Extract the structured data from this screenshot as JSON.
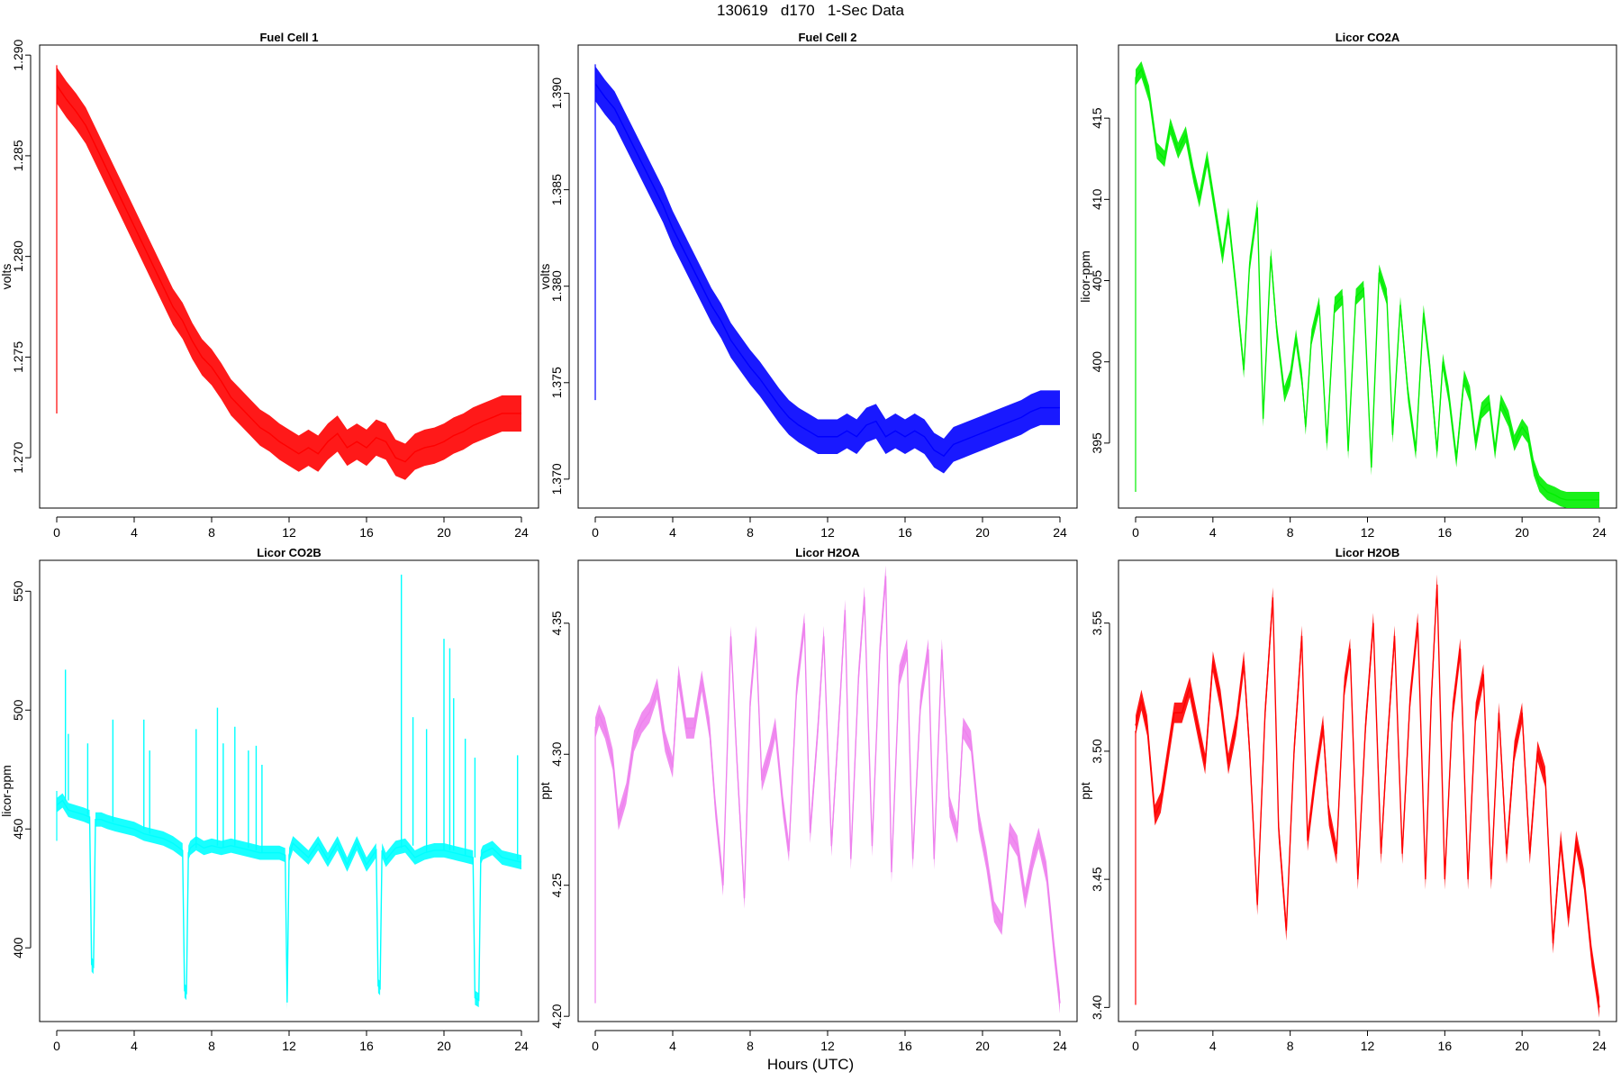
{
  "title": "130619   d170   1-Sec Data",
  "xlabel": "Hours (UTC)",
  "chart_data": [
    {
      "type": "line",
      "title": "Fuel Cell 1",
      "ylabel": "volts",
      "color": "#ff0000",
      "xlim": [
        0,
        24
      ],
      "ylim": [
        1.2675,
        1.2905
      ],
      "xticks": [
        0,
        4,
        8,
        12,
        16,
        20,
        24
      ],
      "yticks": [
        "1.270",
        "1.275",
        "1.280",
        "1.285",
        "1.290"
      ],
      "x": [
        0,
        0.5,
        1,
        1.5,
        2,
        2.5,
        3,
        3.5,
        4,
        4.5,
        5,
        5.5,
        6,
        6.5,
        7,
        7.5,
        8,
        8.5,
        9,
        9.5,
        10,
        10.5,
        11,
        11.5,
        12,
        12.5,
        13,
        13.5,
        14,
        14.5,
        15,
        15.5,
        16,
        16.5,
        17,
        17.5,
        18,
        18.5,
        19,
        19.5,
        20,
        20.5,
        21,
        21.5,
        22,
        22.5,
        23,
        23.5,
        24
      ],
      "y": [
        1.2885,
        1.2878,
        1.2872,
        1.2865,
        1.2855,
        1.2845,
        1.2835,
        1.2825,
        1.2815,
        1.2805,
        1.2795,
        1.2785,
        1.2775,
        1.2768,
        1.2758,
        1.275,
        1.2745,
        1.2738,
        1.273,
        1.2725,
        1.272,
        1.2715,
        1.2712,
        1.2708,
        1.2705,
        1.2702,
        1.2705,
        1.2702,
        1.2708,
        1.2712,
        1.2705,
        1.2708,
        1.2705,
        1.271,
        1.2708,
        1.27,
        1.2698,
        1.2703,
        1.2705,
        1.2706,
        1.2708,
        1.2711,
        1.2713,
        1.2716,
        1.2718,
        1.272,
        1.2722,
        1.2722,
        1.2722
      ],
      "band": 0.0009,
      "spike": {
        "x": 0,
        "from": 1.2722,
        "to": 1.2895
      }
    },
    {
      "type": "line",
      "title": "Fuel Cell 2",
      "ylabel": "volts",
      "color": "#0000ff",
      "xlim": [
        0,
        24
      ],
      "ylim": [
        1.3685,
        1.3925
      ],
      "xticks": [
        0,
        4,
        8,
        12,
        16,
        20,
        24
      ],
      "yticks": [
        "1.370",
        "1.375",
        "1.380",
        "1.385",
        "1.390"
      ],
      "x": [
        0,
        0.5,
        1,
        1.5,
        2,
        2.5,
        3,
        3.5,
        4,
        4.5,
        5,
        5.5,
        6,
        6.5,
        7,
        7.5,
        8,
        8.5,
        9,
        9.5,
        10,
        10.5,
        11,
        11.5,
        12,
        12.5,
        13,
        13.5,
        14,
        14.5,
        15,
        15.5,
        16,
        16.5,
        17,
        17.5,
        18,
        18.5,
        19,
        19.5,
        20,
        20.5,
        21,
        21.5,
        22,
        22.5,
        23,
        23.5,
        24
      ],
      "y": [
        1.3905,
        1.3898,
        1.3892,
        1.3882,
        1.3872,
        1.3862,
        1.3852,
        1.3842,
        1.383,
        1.382,
        1.381,
        1.38,
        1.379,
        1.3782,
        1.3772,
        1.3765,
        1.3758,
        1.3752,
        1.3745,
        1.3738,
        1.3732,
        1.3728,
        1.3725,
        1.3722,
        1.3722,
        1.3722,
        1.3725,
        1.3722,
        1.3728,
        1.373,
        1.3722,
        1.3725,
        1.3722,
        1.3725,
        1.3722,
        1.3715,
        1.3712,
        1.3718,
        1.372,
        1.3722,
        1.3724,
        1.3726,
        1.3728,
        1.373,
        1.3732,
        1.3735,
        1.3737,
        1.3737,
        1.3737
      ],
      "band": 0.0009,
      "spike": {
        "x": 0,
        "from": 1.3741,
        "to": 1.3915
      }
    },
    {
      "type": "line",
      "title": "Licor CO2A",
      "ylabel": "licor-ppm",
      "color": "#00ee00",
      "xlim": [
        0,
        24
      ],
      "ylim": [
        391.0,
        419.5
      ],
      "xticks": [
        0,
        4,
        8,
        12,
        16,
        20,
        24
      ],
      "yticks": [
        "395",
        "400",
        "405",
        "410",
        "415"
      ],
      "x": [
        0,
        0.3,
        0.7,
        1.1,
        1.5,
        1.8,
        2.2,
        2.6,
        3.0,
        3.3,
        3.7,
        4.1,
        4.5,
        4.8,
        5.2,
        5.6,
        5.9,
        6.3,
        6.6,
        7.0,
        7.3,
        7.7,
        8.0,
        8.3,
        8.6,
        8.8,
        9.1,
        9.5,
        9.9,
        10.3,
        10.7,
        11.0,
        11.4,
        11.8,
        12.2,
        12.6,
        13.0,
        13.3,
        13.7,
        14.1,
        14.5,
        14.9,
        15.2,
        15.6,
        15.9,
        16.2,
        16.6,
        17.0,
        17.3,
        17.6,
        17.9,
        18.3,
        18.6,
        18.9,
        19.3,
        19.6,
        20.0,
        20.3,
        20.6,
        20.9,
        21.3,
        21.7,
        22.0,
        22.3,
        22.6,
        23.0,
        23.3,
        23.7,
        24.0
      ],
      "y": [
        417.5,
        418.0,
        416.5,
        413.0,
        412.5,
        414.5,
        413.0,
        414.0,
        411.5,
        410.0,
        412.5,
        409.5,
        406.5,
        409.0,
        404.5,
        399.5,
        406.0,
        409.5,
        396.5,
        406.5,
        402.0,
        398.0,
        399.0,
        401.5,
        399.0,
        396.0,
        401.5,
        403.5,
        395.0,
        403.5,
        404.0,
        394.5,
        404.0,
        404.5,
        393.5,
        405.5,
        404.0,
        395.5,
        403.5,
        398.0,
        394.5,
        403.0,
        400.0,
        394.5,
        400.0,
        398.0,
        394.0,
        399.0,
        398.0,
        395.0,
        397.0,
        397.5,
        394.5,
        397.5,
        396.5,
        395.0,
        396.0,
        395.5,
        393.5,
        392.5,
        392.0,
        391.8,
        391.6,
        391.5,
        391.5,
        391.5,
        391.5,
        391.5,
        391.5
      ],
      "band": 0.5,
      "spike": {
        "x": 0,
        "from": 392.0,
        "to": 417.5
      }
    },
    {
      "type": "line",
      "title": "Licor CO2B",
      "ylabel": "licor-ppm",
      "color": "#00ffff",
      "xlim": [
        0,
        24
      ],
      "ylim": [
        369.0,
        563.0
      ],
      "xticks": [
        0,
        4,
        8,
        12,
        16,
        20,
        24
      ],
      "yticks": [
        "400",
        "450",
        "500",
        "550"
      ],
      "x": [
        0,
        0.3,
        0.6,
        1.0,
        1.4,
        1.7,
        1.8,
        1.9,
        2.0,
        2.3,
        2.6,
        3.0,
        3.5,
        4.0,
        4.5,
        5.0,
        5.5,
        6.0,
        6.5,
        6.6,
        6.7,
        6.8,
        6.9,
        7.2,
        7.6,
        8.0,
        8.5,
        9.0,
        9.5,
        10.0,
        10.5,
        11.0,
        11.5,
        11.8,
        11.9,
        12.0,
        12.2,
        12.6,
        13.0,
        13.5,
        14.0,
        14.5,
        15.0,
        15.5,
        16.0,
        16.5,
        16.6,
        16.7,
        16.8,
        17.0,
        17.5,
        18.0,
        18.5,
        19.0,
        19.5,
        20.0,
        20.5,
        21.0,
        21.5,
        21.6,
        21.8,
        21.9,
        22.0,
        22.5,
        23.0,
        23.5,
        24.0
      ],
      "y": [
        460,
        462,
        458,
        457,
        456,
        455,
        393,
        392,
        454,
        454,
        453,
        452,
        451,
        450,
        448,
        447,
        446,
        444,
        441,
        382,
        381,
        440,
        442,
        444,
        442,
        443,
        442,
        443,
        442,
        441,
        440,
        440,
        440,
        439,
        377,
        439,
        444,
        441,
        438,
        444,
        437,
        444,
        435,
        444,
        435,
        441,
        384,
        383,
        441,
        437,
        442,
        443,
        438,
        440,
        441,
        441,
        440,
        439,
        438,
        379,
        378,
        438,
        440,
        442,
        438,
        437,
        436
      ],
      "band": 3,
      "spike": {
        "x": 0,
        "from": 445,
        "to": 466
      },
      "spikes": [
        {
          "x": 0.45,
          "to": 517
        },
        {
          "x": 0.6,
          "to": 490
        },
        {
          "x": 1.6,
          "to": 486
        },
        {
          "x": 2.9,
          "to": 496
        },
        {
          "x": 4.5,
          "to": 496
        },
        {
          "x": 4.8,
          "to": 483
        },
        {
          "x": 7.2,
          "to": 492
        },
        {
          "x": 8.3,
          "to": 501
        },
        {
          "x": 8.6,
          "to": 486
        },
        {
          "x": 9.2,
          "to": 493
        },
        {
          "x": 9.9,
          "to": 483
        },
        {
          "x": 10.3,
          "to": 485
        },
        {
          "x": 10.6,
          "to": 477
        },
        {
          "x": 17.8,
          "to": 557
        },
        {
          "x": 18.4,
          "to": 497
        },
        {
          "x": 19.1,
          "to": 492
        },
        {
          "x": 20.0,
          "to": 530
        },
        {
          "x": 20.3,
          "to": 526
        },
        {
          "x": 20.5,
          "to": 505
        },
        {
          "x": 21.1,
          "to": 488
        },
        {
          "x": 21.6,
          "to": 480
        },
        {
          "x": 23.8,
          "to": 481
        }
      ]
    },
    {
      "type": "line",
      "title": "Licor H2OA",
      "ylabel": "ppt",
      "color": "#ee82ee",
      "xlim": [
        0,
        24
      ],
      "ylim": [
        4.198,
        4.374
      ],
      "xticks": [
        0,
        4,
        8,
        12,
        16,
        20,
        24
      ],
      "yticks": [
        "4.20",
        "4.25",
        "4.30",
        "4.35"
      ],
      "x": [
        0,
        0.2,
        0.5,
        0.9,
        1.2,
        1.6,
        2.0,
        2.4,
        2.8,
        3.2,
        3.6,
        4.0,
        4.3,
        4.7,
        5.1,
        5.5,
        5.9,
        6.2,
        6.6,
        7.0,
        7.3,
        7.7,
        8.0,
        8.3,
        8.6,
        9.0,
        9.3,
        9.7,
        10.0,
        10.4,
        10.8,
        11.1,
        11.5,
        11.8,
        12.2,
        12.6,
        12.9,
        13.2,
        13.6,
        13.9,
        14.3,
        14.7,
        15.0,
        15.3,
        15.7,
        16.1,
        16.4,
        16.8,
        17.2,
        17.5,
        17.9,
        18.3,
        18.7,
        19.0,
        19.4,
        19.8,
        20.2,
        20.6,
        21.0,
        21.4,
        21.8,
        22.2,
        22.6,
        22.9,
        23.3,
        23.7,
        24.0
      ],
      "y": [
        4.31,
        4.315,
        4.31,
        4.298,
        4.275,
        4.285,
        4.305,
        4.312,
        4.316,
        4.325,
        4.305,
        4.295,
        4.33,
        4.31,
        4.31,
        4.328,
        4.31,
        4.28,
        4.25,
        4.345,
        4.3,
        4.245,
        4.32,
        4.345,
        4.29,
        4.3,
        4.31,
        4.28,
        4.263,
        4.325,
        4.35,
        4.27,
        4.31,
        4.345,
        4.265,
        4.315,
        4.355,
        4.26,
        4.33,
        4.36,
        4.265,
        4.34,
        4.368,
        4.255,
        4.33,
        4.34,
        4.26,
        4.32,
        4.34,
        4.26,
        4.34,
        4.28,
        4.27,
        4.31,
        4.305,
        4.275,
        4.26,
        4.24,
        4.235,
        4.27,
        4.265,
        4.245,
        4.26,
        4.268,
        4.255,
        4.225,
        4.205
      ],
      "band": 0.004,
      "spike": {
        "x": 0,
        "from": 4.205,
        "to": 4.31
      }
    },
    {
      "type": "line",
      "title": "Licor H2OB",
      "ylabel": "ppt",
      "color": "#ff0000",
      "xlim": [
        0,
        24
      ],
      "ylim": [
        3.3945,
        3.5745
      ],
      "xticks": [
        0,
        4,
        8,
        12,
        16,
        20,
        24
      ],
      "yticks": [
        "3.40",
        "3.45",
        "3.50",
        "3.55"
      ],
      "x": [
        0,
        0.3,
        0.6,
        1.0,
        1.3,
        1.7,
        2.0,
        2.4,
        2.8,
        3.2,
        3.6,
        4.0,
        4.4,
        4.8,
        5.2,
        5.6,
        5.9,
        6.3,
        6.7,
        7.1,
        7.4,
        7.8,
        8.2,
        8.6,
        8.9,
        9.3,
        9.7,
        10.0,
        10.4,
        10.8,
        11.1,
        11.5,
        11.9,
        12.3,
        12.7,
        13.0,
        13.4,
        13.8,
        14.2,
        14.6,
        15.0,
        15.3,
        15.6,
        16.0,
        16.4,
        16.8,
        17.2,
        17.6,
        18.0,
        18.4,
        18.8,
        19.2,
        19.6,
        20.0,
        20.4,
        20.8,
        21.2,
        21.6,
        22.0,
        22.4,
        22.8,
        23.2,
        23.6,
        24.0
      ],
      "y": [
        3.51,
        3.52,
        3.51,
        3.475,
        3.48,
        3.5,
        3.515,
        3.515,
        3.525,
        3.51,
        3.495,
        3.535,
        3.52,
        3.495,
        3.51,
        3.535,
        3.5,
        3.44,
        3.515,
        3.56,
        3.47,
        3.43,
        3.5,
        3.545,
        3.465,
        3.49,
        3.51,
        3.475,
        3.46,
        3.525,
        3.54,
        3.45,
        3.51,
        3.55,
        3.46,
        3.5,
        3.545,
        3.46,
        3.52,
        3.55,
        3.45,
        3.52,
        3.565,
        3.45,
        3.515,
        3.54,
        3.45,
        3.515,
        3.53,
        3.45,
        3.515,
        3.46,
        3.5,
        3.515,
        3.46,
        3.5,
        3.49,
        3.425,
        3.465,
        3.435,
        3.465,
        3.45,
        3.42,
        3.4
      ],
      "band": 0.004,
      "spike": {
        "x": 0,
        "from": 3.401,
        "to": 3.508
      }
    }
  ]
}
